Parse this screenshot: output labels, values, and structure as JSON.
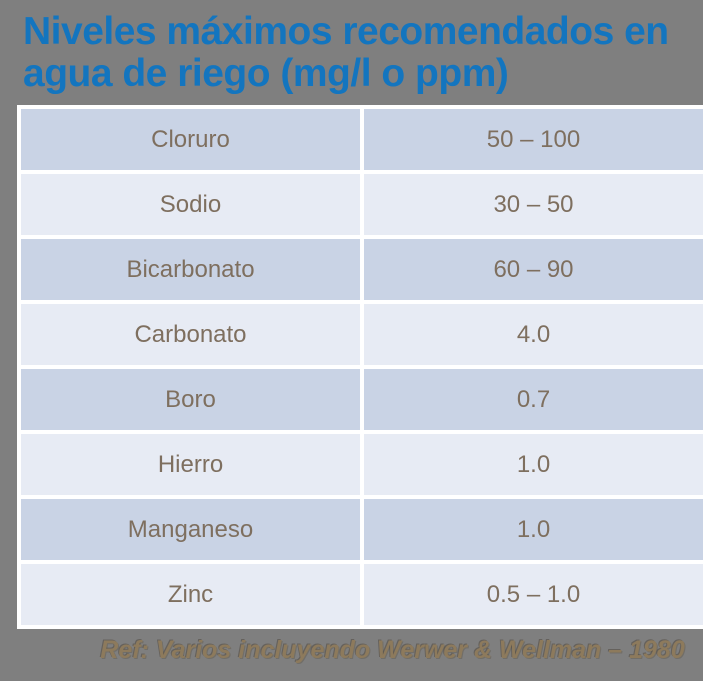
{
  "slide": {
    "title": {
      "line1": "Niveles máximos recomendados en",
      "line2": "agua de riego (mg/l o ppm)"
    },
    "table": {
      "rows": [
        {
          "parameter": "Cloruro",
          "value": "50 – 100"
        },
        {
          "parameter": "Sodio",
          "value": "30 – 50"
        },
        {
          "parameter": "Bicarbonato",
          "value": "60 – 90"
        },
        {
          "parameter": "Carbonato",
          "value": "4.0"
        },
        {
          "parameter": "Boro",
          "value": "0.7"
        },
        {
          "parameter": "Hierro",
          "value": "1.0"
        },
        {
          "parameter": "Manganeso",
          "value": "1.0"
        },
        {
          "parameter": "Zinc",
          "value": "0.5 – 1.0"
        }
      ]
    },
    "footer": {
      "reference": "Ref: Varios incluyendo Werwer & Wellman – 1980"
    }
  },
  "colors": {
    "background": "#7f7f7f",
    "title_blue": "#1375bf",
    "row_dark": "#c9d3e5",
    "row_light": "#e7ebf4",
    "cell_text": "#7e6f5f",
    "footer_text": "#8d7a5c",
    "table_border": "#ffffff"
  }
}
